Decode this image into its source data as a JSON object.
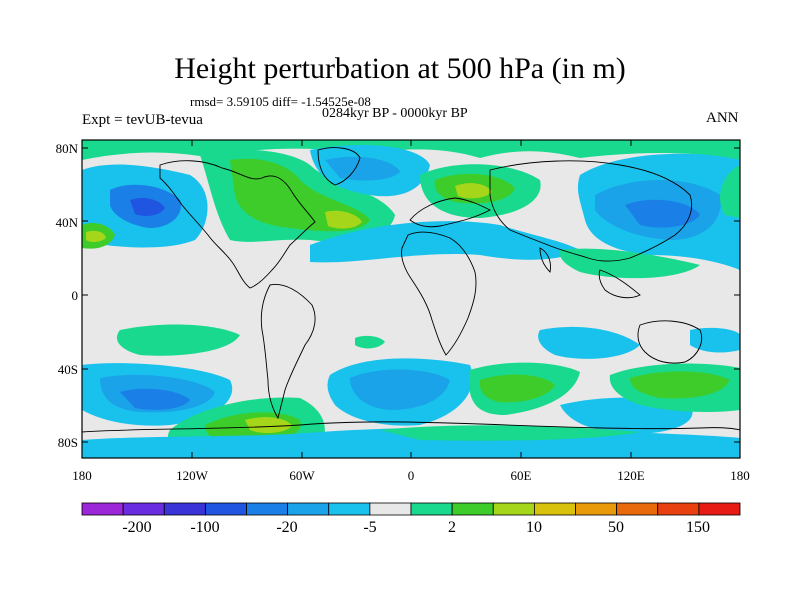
{
  "title": "Height perturbation at 500 hPa (in m)",
  "stats": "rmsd= 3.59105 diff= -1.54525e-08",
  "period": "0284kyr BP - 0000kyr BP",
  "experiment": "Expt = tevUB-tevua",
  "season": "ANN",
  "map": {
    "lon_ticks": [
      "180",
      "120W",
      "60W",
      "0",
      "60E",
      "120E",
      "180"
    ],
    "lat_ticks": [
      "80N",
      "40N",
      "0",
      "40S",
      "80S"
    ]
  },
  "colorbar": {
    "labels": [
      "-200",
      "-100",
      "-20",
      "-5",
      "2",
      "10",
      "50",
      "150"
    ],
    "colors": [
      "#9c27d9",
      "#6a2ce0",
      "#3a33d8",
      "#1f55e0",
      "#1a7fe6",
      "#1aa3e8",
      "#19c2ec",
      "#e8e8e8",
      "#19d98e",
      "#3dcc2a",
      "#a6d619",
      "#d8c20e",
      "#e89a0a",
      "#e86a0a",
      "#e8400e",
      "#e81a14"
    ]
  }
}
